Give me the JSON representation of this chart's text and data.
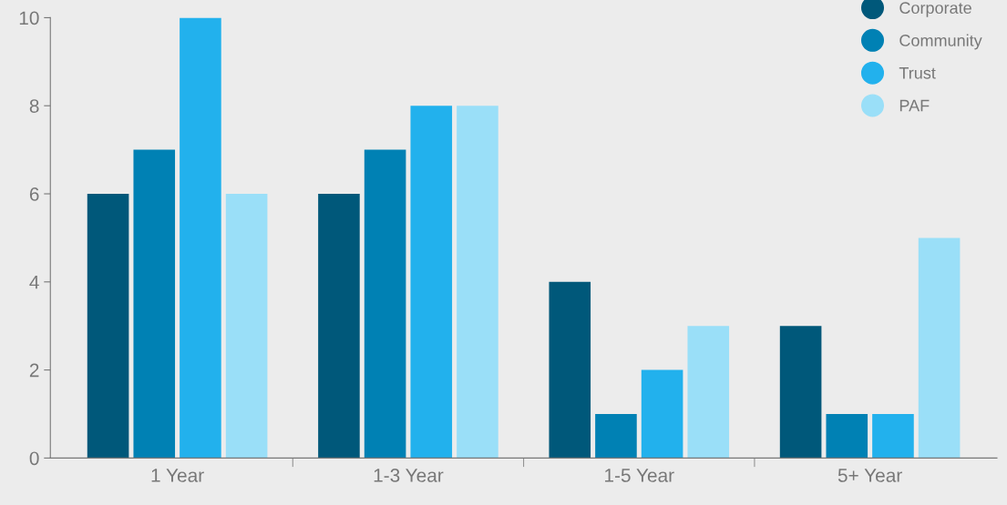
{
  "chart_data": {
    "type": "bar",
    "categories": [
      "1 Year",
      "1-3 Year",
      "1-5 Year",
      "5+ Year"
    ],
    "series": [
      {
        "name": "Corporate",
        "color": "#00587a",
        "values": [
          6,
          6,
          4,
          3
        ]
      },
      {
        "name": "Community",
        "color": "#0081b4",
        "values": [
          7,
          7,
          1,
          1
        ]
      },
      {
        "name": "Trust",
        "color": "#22b1ed",
        "values": [
          10,
          8,
          2,
          1
        ]
      },
      {
        "name": "PAF",
        "color": "#9adff8",
        "values": [
          6,
          8,
          3,
          5
        ]
      }
    ],
    "ylim": [
      0,
      10
    ],
    "yticks": [
      0,
      2,
      4,
      6,
      8,
      10
    ],
    "grid": false,
    "legend": "top right"
  }
}
